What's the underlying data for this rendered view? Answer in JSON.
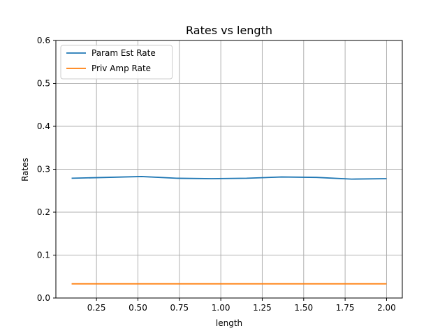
{
  "chart_data": {
    "type": "line",
    "title": "Rates vs length",
    "xlabel": "length",
    "ylabel": "Rates",
    "xlim": [
      0.005,
      2.095
    ],
    "ylim": [
      0,
      0.6
    ],
    "x_ticks": [
      0.25,
      0.5,
      0.75,
      1.0,
      1.25,
      1.5,
      1.75,
      2.0
    ],
    "x_tick_labels": [
      "0.25",
      "0.50",
      "0.75",
      "1.00",
      "1.25",
      "1.50",
      "1.75",
      "2.00"
    ],
    "y_ticks": [
      0.0,
      0.1,
      0.2,
      0.3,
      0.4,
      0.5,
      0.6
    ],
    "y_tick_labels": [
      "0.0",
      "0.1",
      "0.2",
      "0.3",
      "0.4",
      "0.5",
      "0.6"
    ],
    "grid": true,
    "legend_position": "top-left",
    "series": [
      {
        "name": "Param Est Rate",
        "color": "#1f77b4",
        "x": [
          0.1,
          0.311,
          0.522,
          0.733,
          0.944,
          1.156,
          1.367,
          1.578,
          1.789,
          2.0
        ],
        "values": [
          0.279,
          0.281,
          0.283,
          0.279,
          0.278,
          0.279,
          0.282,
          0.281,
          0.277,
          0.278
        ]
      },
      {
        "name": "Priv Amp Rate",
        "color": "#ff7f0e",
        "x": [
          0.1,
          0.311,
          0.522,
          0.733,
          0.944,
          1.156,
          1.367,
          1.578,
          1.789,
          2.0
        ],
        "values": [
          0.033,
          0.033,
          0.033,
          0.033,
          0.033,
          0.033,
          0.033,
          0.033,
          0.033,
          0.033
        ]
      }
    ]
  }
}
